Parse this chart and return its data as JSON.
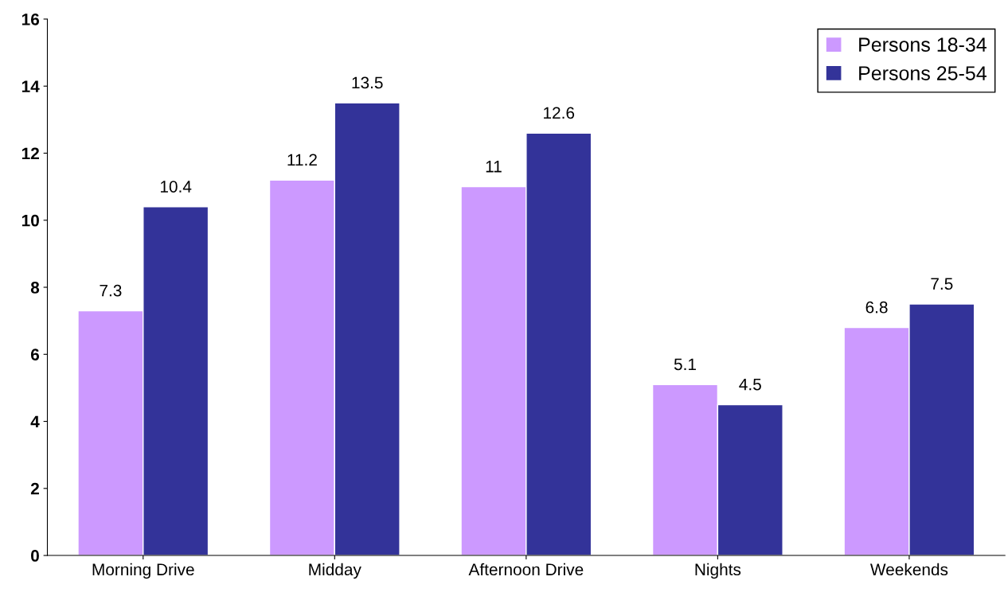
{
  "chart_data": {
    "type": "bar",
    "categories": [
      "Morning Drive",
      "Midday",
      "Afternoon Drive",
      "Nights",
      "Weekends"
    ],
    "series": [
      {
        "name": "Persons 18-34",
        "color": "#cc99ff",
        "values": [
          7.3,
          11.2,
          11,
          5.1,
          6.8
        ]
      },
      {
        "name": "Persons 25-54",
        "color": "#333399",
        "values": [
          10.4,
          13.5,
          12.6,
          4.5,
          7.5
        ]
      }
    ],
    "ylim": [
      0,
      16
    ],
    "yticks": [
      0,
      2,
      4,
      6,
      8,
      10,
      12,
      14,
      16
    ],
    "data_labels": true,
    "legend": "top right",
    "grid": false
  }
}
